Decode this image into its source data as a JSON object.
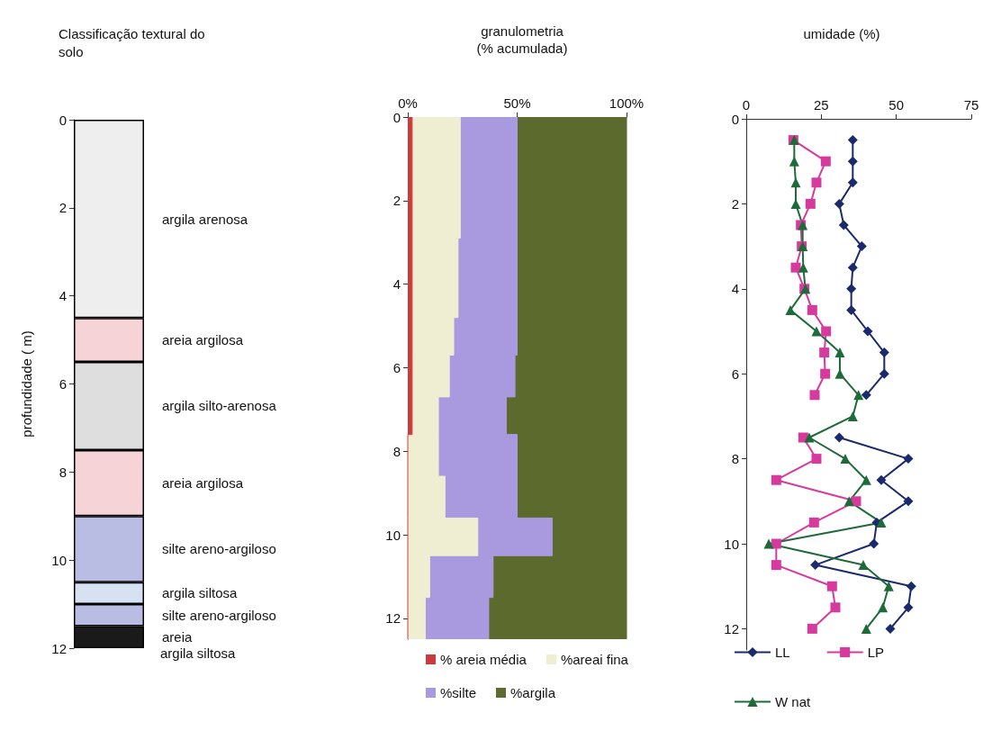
{
  "chart_data": [
    {
      "type": "bar",
      "title": "Classificação textural do solo",
      "ylabel": "profundidade ( m)",
      "categories": [
        null
      ],
      "stacked": true,
      "tick_labels": "y",
      "legend": false,
      "ylim": [
        12,
        0
      ],
      "yticks": [
        0,
        2,
        4,
        6,
        8,
        10,
        12
      ],
      "annotations": [
        "argila siltosa"
      ],
      "series": [
        {
          "name": "argila arenosa",
          "color": "#eeeeee",
          "values": [
            4.5
          ]
        },
        {
          "name": "areia argilosa",
          "color": "#f5d3d6",
          "values": [
            1
          ]
        },
        {
          "name": "argila silto-arenosa",
          "color": "#dedede",
          "values": [
            2
          ]
        },
        {
          "name": "areia argilosa",
          "color": "#f5d3d6",
          "values": [
            1.5
          ]
        },
        {
          "name": "silte areno-argiloso",
          "color": "#b9bde3",
          "values": [
            1.5
          ]
        },
        {
          "name": "argila siltosa",
          "color": "#d6e2f2",
          "values": [
            0.5
          ]
        },
        {
          "name": "silte areno-argiloso",
          "color": "#b9bde3",
          "values": [
            0.5
          ]
        },
        {
          "name": "areia",
          "color": "#1a1a1a",
          "values": [
            0.5
          ]
        }
      ]
    },
    {
      "type": "area",
      "title": "granulometria",
      "subtitle": "(% acumulada)",
      "orientation": "horizontal",
      "stacked": true,
      "legend": "bottom",
      "xlim": [
        0,
        100
      ],
      "xticks": [
        {
          "value": 0,
          "label": "0%"
        },
        {
          "value": 50,
          "label": "50%"
        },
        {
          "value": 100,
          "label": "100%"
        }
      ],
      "ylim": [
        12.5,
        0
      ],
      "yticks": [
        0,
        2,
        4,
        6,
        8,
        10,
        12
      ],
      "x": [
        0,
        2.9,
        2.9,
        4.8,
        4.8,
        5.7,
        5.7,
        6.7,
        6.7,
        7.6,
        7.6,
        8.6,
        8.6,
        9.6,
        9.6,
        10.5,
        10.5,
        11.5,
        11.5,
        12.5
      ],
      "series": [
        {
          "name": "% areia média",
          "color": "#cc3b3b",
          "values": [
            2,
            2,
            2,
            2,
            2,
            2,
            2,
            2,
            2,
            2,
            0,
            0,
            0,
            0,
            0,
            0,
            0,
            0,
            0,
            0
          ]
        },
        {
          "name": "%areai fina",
          "color": "#efedd2",
          "values": [
            22,
            22,
            21,
            21,
            19,
            19,
            17,
            17,
            12,
            12,
            14,
            14,
            17,
            17,
            32,
            32,
            10,
            10,
            8,
            8
          ]
        },
        {
          "name": "%silte",
          "color": "#a99ae0",
          "values": [
            26,
            26,
            27,
            27,
            29,
            29,
            30,
            30,
            31,
            31,
            36,
            36,
            33,
            33,
            34,
            34,
            29,
            29,
            29,
            29
          ]
        },
        {
          "name": "%argila",
          "color": "#5c6a2e",
          "values": [
            50,
            50,
            50,
            50,
            50,
            50,
            51,
            51,
            55,
            55,
            50,
            50,
            50,
            50,
            34,
            34,
            61,
            61,
            63,
            63
          ]
        }
      ]
    },
    {
      "type": "line",
      "title": "umidade (%)",
      "orientation": "horizontal",
      "legend": "bottom",
      "grid": false,
      "xlim": [
        0,
        75
      ],
      "xticks": [
        0,
        25,
        50,
        75
      ],
      "ylim": [
        12.5,
        0
      ],
      "yticks": [
        0,
        2,
        4,
        6,
        8,
        10,
        12
      ],
      "x": [
        0.5,
        1,
        1.5,
        2,
        2.5,
        3,
        3.5,
        4,
        4.5,
        5,
        5.5,
        6,
        6.5,
        7,
        7.5,
        8,
        8.5,
        9,
        9.5,
        10,
        10.5,
        11,
        11.5,
        12
      ],
      "series": [
        {
          "name": "LL",
          "color": "#1a2a6c",
          "marker": "diamond",
          "values": [
            35.5,
            35.5,
            35.5,
            31,
            32.5,
            38.5,
            35.5,
            35,
            35,
            40.5,
            46,
            46,
            40,
            null,
            31,
            54,
            45,
            54,
            43.5,
            42.5,
            23,
            55,
            54,
            48
          ]
        },
        {
          "name": "LP",
          "color": "#d63a9c",
          "marker": "square",
          "values": [
            15.7,
            26.5,
            23.4,
            21.4,
            18.2,
            18.5,
            16.5,
            19.4,
            22,
            26.6,
            26,
            26.3,
            22.8,
            null,
            19,
            23.4,
            10,
            36.6,
            22.6,
            10,
            10,
            28.6,
            29.7,
            22
          ]
        },
        {
          "name": "W nat",
          "color": "#1e6b3a",
          "marker": "triangle",
          "values": [
            16,
            16,
            16.5,
            16.5,
            18.8,
            18.8,
            19,
            19.7,
            14.7,
            23.4,
            31.2,
            31.2,
            37.4,
            35.5,
            21,
            33,
            40,
            34.3,
            45,
            7.5,
            39,
            47.5,
            45.5,
            40
          ]
        }
      ]
    }
  ]
}
